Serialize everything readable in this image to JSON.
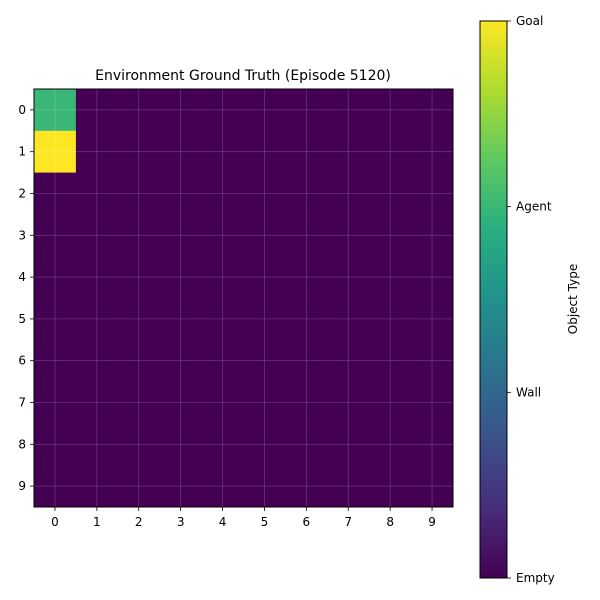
{
  "chart_data": {
    "type": "heatmap",
    "title": "Environment Ground Truth (Episode 5120)",
    "x_ticks": [
      "0",
      "1",
      "2",
      "3",
      "4",
      "5",
      "6",
      "7",
      "8",
      "9"
    ],
    "y_ticks": [
      "0",
      "1",
      "2",
      "3",
      "4",
      "5",
      "6",
      "7",
      "8",
      "9"
    ],
    "grid": true,
    "colormap": "viridis",
    "value_range": [
      0,
      3
    ],
    "values": [
      [
        2,
        0,
        0,
        0,
        0,
        0,
        0,
        0,
        0,
        0
      ],
      [
        3,
        0,
        0,
        0,
        0,
        0,
        0,
        0,
        0,
        0
      ],
      [
        0,
        0,
        0,
        0,
        0,
        0,
        0,
        0,
        0,
        0
      ],
      [
        0,
        0,
        0,
        0,
        0,
        0,
        0,
        0,
        0,
        0
      ],
      [
        0,
        0,
        0,
        0,
        0,
        0,
        0,
        0,
        0,
        0
      ],
      [
        0,
        0,
        0,
        0,
        0,
        0,
        0,
        0,
        0,
        0
      ],
      [
        0,
        0,
        0,
        0,
        0,
        0,
        0,
        0,
        0,
        0
      ],
      [
        0,
        0,
        0,
        0,
        0,
        0,
        0,
        0,
        0,
        0
      ],
      [
        0,
        0,
        0,
        0,
        0,
        0,
        0,
        0,
        0,
        0
      ],
      [
        0,
        0,
        0,
        0,
        0,
        0,
        0,
        0,
        0,
        0
      ]
    ],
    "colorbar": {
      "label": "Object Type",
      "ticks": [
        {
          "value": 0,
          "label": "Empty"
        },
        {
          "value": 1,
          "label": "Wall"
        },
        {
          "value": 2,
          "label": "Agent"
        },
        {
          "value": 3,
          "label": "Goal"
        }
      ]
    }
  }
}
